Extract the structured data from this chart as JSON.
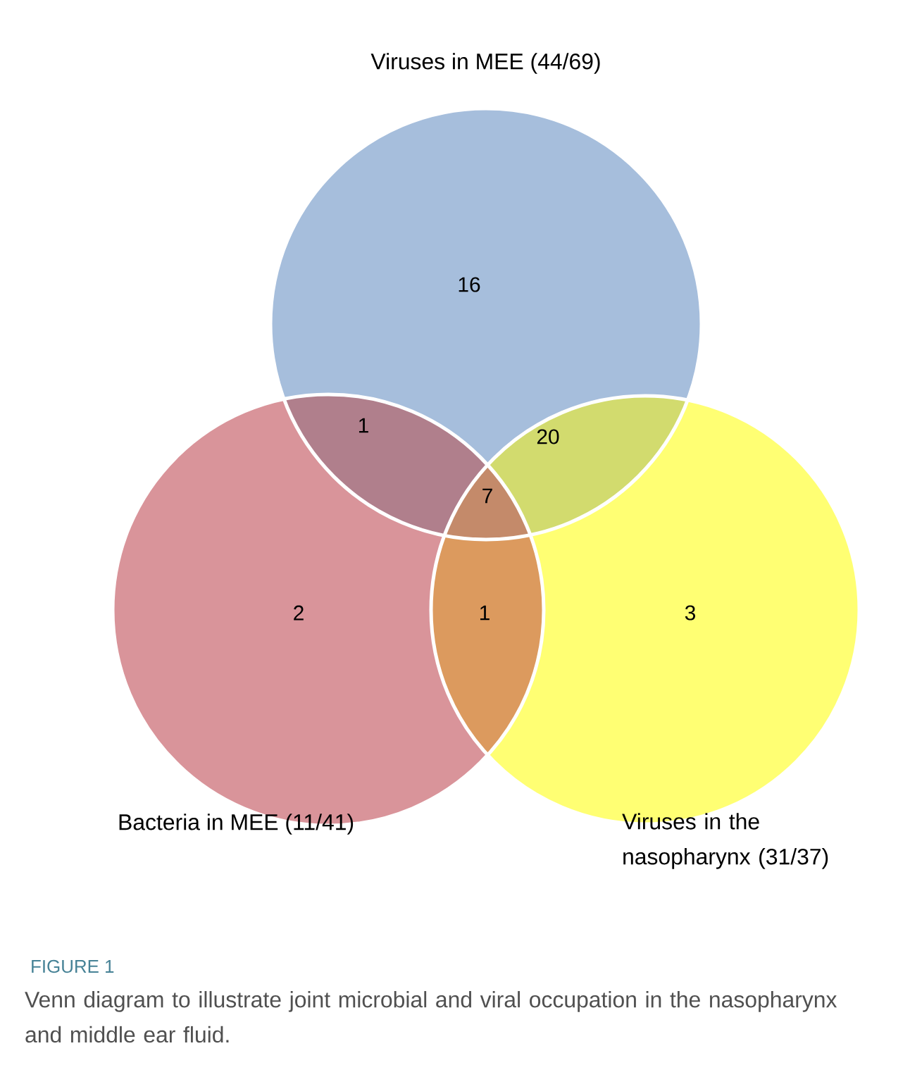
{
  "chart_data": {
    "type": "other",
    "categories": [
      null,
      null,
      null,
      null,
      null,
      null,
      null
    ],
    "values": [
      16,
      1,
      20,
      7,
      2,
      1,
      3
    ],
    "colors": [
      "#a6bedc",
      "#b07f8c",
      "#d2db6e",
      "#c48a6a",
      "#d9949a",
      "#dc9a5e",
      "#ffff73"
    ],
    "data_labels": true,
    "annotations": [
      "Viruses in MEE (44/69)",
      "Bacteria in MEE (11/41)",
      "Viruses in the nasopharynx (31/37)",
      "FIGURE 1",
      "Venn diagram to illustrate joint microbial and viral occupation in the nasopharynx and middle ear fluid."
    ]
  }
}
